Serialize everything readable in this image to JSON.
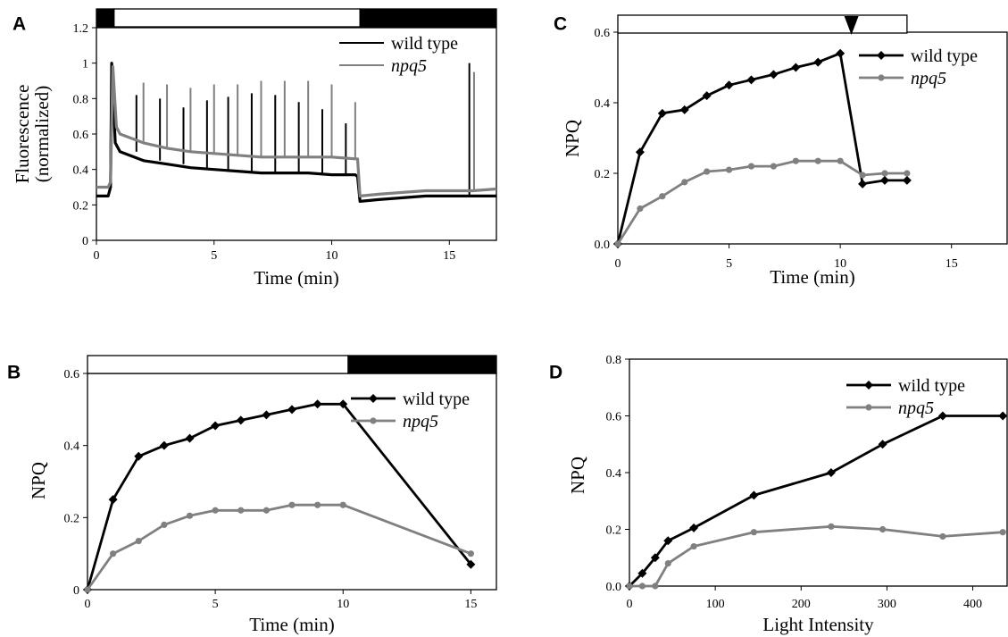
{
  "chart_data": [
    {
      "panel": "A",
      "type": "line",
      "xlabel": "Time (min)",
      "ylabel_lines": [
        "Fluorescence",
        "(normalized)"
      ],
      "xlim": [
        0,
        17
      ],
      "ylim": [
        0,
        1.2
      ],
      "xticks": [
        0,
        5,
        10,
        15
      ],
      "yticks": [
        0,
        0.2,
        0.4,
        0.6,
        0.8,
        1,
        1.2
      ],
      "ytick_labels": [
        "0",
        "0.2",
        "0.4",
        "0.6",
        "0.8",
        "1",
        "1.2"
      ],
      "legend_position": "top-right",
      "light_bar": [
        {
          "from": 0,
          "to": 0.75,
          "state": "dark"
        },
        {
          "from": 0.75,
          "to": 11.2,
          "state": "light"
        },
        {
          "from": 11.2,
          "to": 17,
          "state": "dark"
        }
      ],
      "series": [
        {
          "name": "wild type",
          "color": "#000000",
          "x": [
            0,
            0.5,
            0.6,
            0.65,
            0.8,
            1,
            2,
            3,
            4,
            5,
            6,
            7,
            8,
            9,
            10,
            11,
            11.1,
            11.2,
            12,
            13,
            14,
            15,
            16,
            17
          ],
          "y": [
            0.25,
            0.25,
            0.3,
            1.0,
            0.55,
            0.5,
            0.45,
            0.43,
            0.41,
            0.4,
            0.39,
            0.38,
            0.38,
            0.38,
            0.37,
            0.37,
            0.36,
            0.22,
            0.23,
            0.24,
            0.25,
            0.25,
            0.25,
            0.25
          ],
          "flash_peaks": [
            [
              0.65,
              1.0
            ],
            [
              1.7,
              0.82
            ],
            [
              2.7,
              0.8
            ],
            [
              3.7,
              0.75
            ],
            [
              4.7,
              0.79
            ],
            [
              5.6,
              0.81
            ],
            [
              6.6,
              0.83
            ],
            [
              7.6,
              0.82
            ],
            [
              8.6,
              0.78
            ],
            [
              9.6,
              0.74
            ],
            [
              10.6,
              0.66
            ],
            [
              15.85,
              1.0
            ]
          ]
        },
        {
          "name": "npq5",
          "color": "#808080",
          "x": [
            0,
            0.5,
            0.6,
            0.7,
            0.85,
            1,
            2,
            3,
            4,
            5,
            6,
            7,
            8,
            9,
            10,
            11,
            11.1,
            11.2,
            12,
            13,
            14,
            15,
            16,
            17
          ],
          "y": [
            0.3,
            0.3,
            0.33,
            0.98,
            0.64,
            0.6,
            0.55,
            0.52,
            0.5,
            0.49,
            0.48,
            0.47,
            0.47,
            0.47,
            0.47,
            0.46,
            0.46,
            0.25,
            0.26,
            0.27,
            0.28,
            0.28,
            0.28,
            0.29
          ],
          "flash_peaks": [
            [
              0.8,
              0.98
            ],
            [
              2.0,
              0.89
            ],
            [
              3.0,
              0.88
            ],
            [
              4.0,
              0.86
            ],
            [
              5.0,
              0.88
            ],
            [
              6.0,
              0.88
            ],
            [
              7.0,
              0.9
            ],
            [
              8.0,
              0.9
            ],
            [
              9.0,
              0.9
            ],
            [
              10.0,
              0.88
            ],
            [
              11.0,
              0.78
            ],
            [
              16.05,
              0.95
            ]
          ]
        }
      ]
    },
    {
      "panel": "B",
      "type": "line",
      "xlabel": "Time (min)",
      "ylabel": "NPQ",
      "xlim": [
        0,
        16
      ],
      "ylim": [
        0,
        0.6
      ],
      "xticks": [
        0,
        5,
        10,
        15
      ],
      "yticks": [
        0,
        0.2,
        0.4,
        0.6
      ],
      "ytick_labels": [
        "0",
        "0.2",
        "0.4",
        "0.6"
      ],
      "legend_position": "top-right",
      "light_bar": [
        {
          "from": 0,
          "to": 10.2,
          "state": "light"
        },
        {
          "from": 10.2,
          "to": 16,
          "state": "dark"
        }
      ],
      "series": [
        {
          "name": "wild type",
          "color": "#000000",
          "x": [
            0,
            1,
            2,
            3,
            4,
            5,
            6,
            7,
            8,
            9,
            10,
            15
          ],
          "y": [
            0,
            0.25,
            0.37,
            0.4,
            0.42,
            0.455,
            0.47,
            0.485,
            0.5,
            0.515,
            0.515,
            0.07
          ]
        },
        {
          "name": "npq5",
          "color": "#808080",
          "x": [
            0,
            1,
            2,
            3,
            4,
            5,
            6,
            7,
            8,
            9,
            10,
            15
          ],
          "y": [
            0,
            0.1,
            0.135,
            0.18,
            0.205,
            0.22,
            0.22,
            0.22,
            0.235,
            0.235,
            0.235,
            0.1
          ]
        }
      ]
    },
    {
      "panel": "C",
      "type": "line",
      "xlabel": "Time (min)",
      "ylabel": "NPQ",
      "xlim": [
        0,
        17.5
      ],
      "ylim": [
        0,
        0.6
      ],
      "xticks": [
        0,
        5,
        10,
        15
      ],
      "yticks": [
        0,
        0.2,
        0.4,
        0.6
      ],
      "ytick_labels": [
        "0.0",
        "0.2",
        "0.4",
        "0.6"
      ],
      "legend_position": "top-right",
      "light_bar": [
        {
          "from": 0,
          "to": 13,
          "state": "light"
        }
      ],
      "marker_arrow_x": 10.5,
      "series": [
        {
          "name": "wild type",
          "color": "#000000",
          "x": [
            0,
            1,
            2,
            3,
            4,
            5,
            6,
            7,
            8,
            9,
            10,
            11,
            12,
            13
          ],
          "y": [
            0,
            0.26,
            0.37,
            0.38,
            0.42,
            0.45,
            0.465,
            0.48,
            0.5,
            0.515,
            0.54,
            0.17,
            0.18,
            0.18
          ]
        },
        {
          "name": "npq5",
          "color": "#808080",
          "x": [
            0,
            1,
            2,
            3,
            4,
            5,
            6,
            7,
            8,
            9,
            10,
            11,
            12,
            13
          ],
          "y": [
            0,
            0.1,
            0.135,
            0.175,
            0.205,
            0.21,
            0.22,
            0.22,
            0.235,
            0.235,
            0.235,
            0.195,
            0.2,
            0.2
          ]
        }
      ]
    },
    {
      "panel": "D",
      "type": "line",
      "xlabel": "Light Intensity",
      "ylabel": "NPQ",
      "xlim": [
        0,
        440
      ],
      "ylim": [
        0,
        0.8
      ],
      "xticks": [
        0,
        100,
        200,
        300,
        400
      ],
      "yticks": [
        0,
        0.2,
        0.4,
        0.6,
        0.8
      ],
      "ytick_labels": [
        "0.0",
        "0.2",
        "0.4",
        "0.6",
        "0.8"
      ],
      "legend_position": "top-right",
      "series": [
        {
          "name": "wild type",
          "color": "#000000",
          "x": [
            0,
            15,
            30,
            45,
            75,
            145,
            235,
            295,
            365,
            435
          ],
          "y": [
            0,
            0.045,
            0.1,
            0.16,
            0.205,
            0.32,
            0.4,
            0.5,
            0.6,
            0.6
          ]
        },
        {
          "name": "npq5",
          "color": "#808080",
          "x": [
            0,
            15,
            30,
            45,
            75,
            145,
            235,
            295,
            365,
            435
          ],
          "y": [
            0,
            0,
            0,
            0.08,
            0.14,
            0.19,
            0.21,
            0.2,
            0.175,
            0.19
          ]
        }
      ]
    }
  ]
}
